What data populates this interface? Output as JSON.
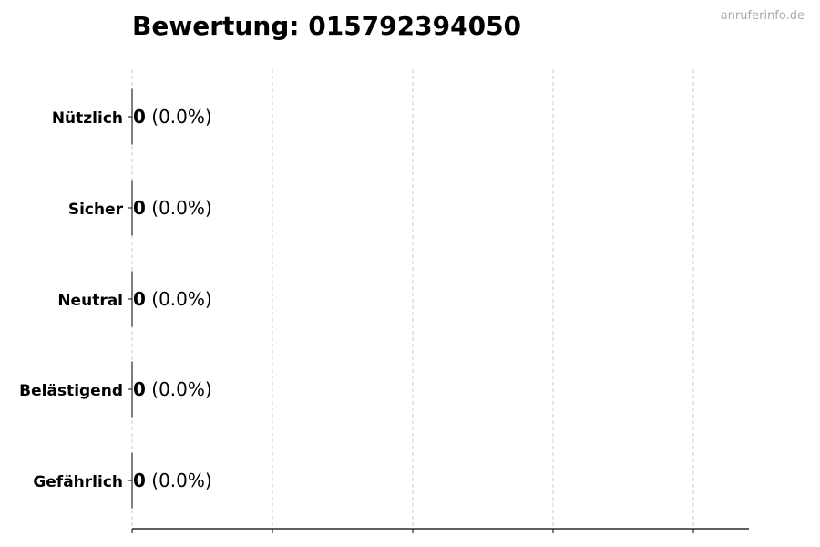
{
  "title": "Bewertung: 015792394050",
  "watermark": "anruferinfo.de",
  "chart_data": {
    "type": "bar",
    "orientation": "horizontal",
    "title": "Bewertung: 015792394050",
    "categories": [
      "Nützlich",
      "Sicher",
      "Neutral",
      "Belästigend",
      "Gefährlich"
    ],
    "values": [
      0,
      0,
      0,
      0,
      0
    ],
    "data_labels": [
      {
        "count": "0",
        "percent": "(0.0%)"
      },
      {
        "count": "0",
        "percent": "(0.0%)"
      },
      {
        "count": "0",
        "percent": "(0.0%)"
      },
      {
        "count": "0",
        "percent": "(0.0%)"
      },
      {
        "count": "0",
        "percent": "(0.0%)"
      }
    ],
    "xlabel": "",
    "ylabel": "",
    "x_tick_labels_shown": false,
    "grid": "x, dashed",
    "colors": {
      "bar_edge": "#000000",
      "grid": "#cccccc"
    }
  }
}
